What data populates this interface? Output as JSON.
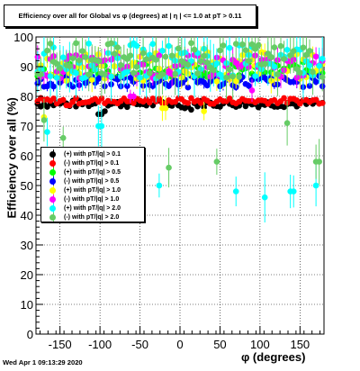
{
  "title": "Efficiency over all for Global vs φ (degrees) at | η | <= 1.0 at pT > 0.11",
  "footer": "Wed Apr  1 09:13:29 2020",
  "chart_data": {
    "type": "scatter",
    "title": "Efficiency over all for Global vs φ (degrees) at | η | <= 1.0 at pT > 0.11",
    "xlabel": "φ (degrees)",
    "ylabel": "Efficiency over all (%)",
    "xlim": [
      -180,
      180
    ],
    "ylim": [
      0,
      100
    ],
    "xticks": [
      -150,
      -100,
      -50,
      0,
      50,
      100,
      150
    ],
    "yticks": [
      0,
      10,
      20,
      30,
      40,
      50,
      60,
      70,
      80,
      90,
      100
    ],
    "grid": true,
    "legend_position": "center-left",
    "series": [
      {
        "name": "(+) with pT/|q| > 0.1",
        "color": "#000000",
        "level": 77.5,
        "spread": 1.2,
        "err": 0.6,
        "dips": [
          [
            -100,
            74
          ],
          [
            -95,
            75
          ],
          [
            5,
            76
          ],
          [
            15,
            75.5
          ]
        ]
      },
      {
        "name": "(-) with pT/|q| > 0.1",
        "color": "#ff0000",
        "level": 78.5,
        "spread": 1.0,
        "err": 0.6,
        "dips": [
          [
            -140,
            77
          ],
          [
            40,
            77.5
          ]
        ]
      },
      {
        "name": "(+) with pT/|q| > 0.5",
        "color": "#00ff00",
        "level": 89,
        "spread": 2.5,
        "err": 1.5,
        "dips": [
          [
            -120,
            86
          ],
          [
            60,
            87
          ]
        ]
      },
      {
        "name": "(-) with pT/|q| > 0.5",
        "color": "#0000ff",
        "level": 85,
        "spread": 2.0,
        "err": 1.5,
        "dips": [
          [
            10,
            83
          ],
          [
            120,
            84
          ]
        ]
      },
      {
        "name": "(+) with pT/|q| > 1.0",
        "color": "#ffff00",
        "level": 90,
        "spread": 5.0,
        "err": 3,
        "dips": [
          [
            -170,
            73
          ],
          [
            -20,
            76
          ],
          [
            30,
            75
          ]
        ]
      },
      {
        "name": "(-) with pT/|q| > 1.0",
        "color": "#ff00ff",
        "level": 90,
        "spread": 4.0,
        "err": 3,
        "dips": [
          [
            -60,
            80
          ],
          [
            90,
            82
          ]
        ]
      },
      {
        "name": "(+) with pT/|q| > 2.0",
        "color": "#00ffff",
        "level": 92,
        "spread": 6.0,
        "err": 6,
        "dips": [
          [
            -165,
            68
          ],
          [
            -100,
            70
          ],
          [
            -25,
            50
          ],
          [
            70,
            48
          ],
          [
            105,
            46
          ],
          [
            140,
            48
          ],
          [
            170,
            50
          ]
        ]
      },
      {
        "name": "(-) with pT/|q| > 2.0",
        "color": "#66cc66",
        "level": 92,
        "spread": 6.0,
        "err": 6,
        "dips": [
          [
            -170,
            72
          ],
          [
            -145,
            66
          ],
          [
            -50,
            48
          ],
          [
            -15,
            56
          ],
          [
            45,
            58
          ],
          [
            135,
            71
          ],
          [
            172,
            58
          ]
        ]
      }
    ]
  }
}
